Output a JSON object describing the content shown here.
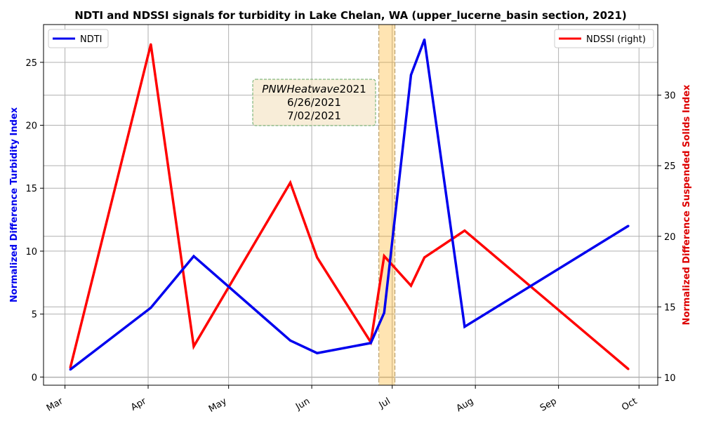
{
  "chart_data": {
    "type": "line",
    "title": "NDTI and NDSSI signals for turbidity in Lake Chelan, WA (upper_lucerne_basin section, 2021)",
    "ylabel_left": "Normalized Difference Turbidity Index",
    "ylabel_right": "Normalized Difference Suspended Solids Index",
    "x_ticks": [
      "Mar",
      "Apr",
      "May",
      "Jun",
      "Jul",
      "Aug",
      "Sep",
      "Oct"
    ],
    "x_tick_dates": [
      "2021-03-01",
      "2021-04-01",
      "2021-05-01",
      "2021-06-01",
      "2021-07-01",
      "2021-08-01",
      "2021-09-01",
      "2021-10-01"
    ],
    "y_left_ticks": [
      0,
      5,
      10,
      15,
      20,
      25
    ],
    "y_left_range": [
      -0.65,
      28
    ],
    "y_right_ticks": [
      10,
      15,
      20,
      25,
      30
    ],
    "y_right_range": [
      9.45,
      35
    ],
    "grid": true,
    "shaded_period": {
      "start": "2021-06-26",
      "end": "2021-07-02",
      "color": "#ffa500"
    },
    "annotation": {
      "lines": [
        "PNWHeatwave2021",
        "6/26/2021",
        "7/02/2021"
      ],
      "italic_part": "PNWHeatwave",
      "roman_part": "2021"
    },
    "series": [
      {
        "name": "NDTI",
        "axis": "left",
        "color": "#0000ee",
        "x": [
          "2021-03-03",
          "2021-04-02",
          "2021-04-18",
          "2021-05-24",
          "2021-06-03",
          "2021-06-23",
          "2021-06-28",
          "2021-07-08",
          "2021-07-13",
          "2021-07-28",
          "2021-09-27"
        ],
        "y": [
          0.6,
          5.5,
          9.6,
          2.9,
          1.9,
          2.7,
          5.1,
          24.0,
          26.8,
          4.0,
          12.0
        ]
      },
      {
        "name": "NDSSI (right)",
        "axis": "right",
        "color": "#ff0000",
        "x": [
          "2021-03-03",
          "2021-04-02",
          "2021-04-18",
          "2021-05-24",
          "2021-06-03",
          "2021-06-23",
          "2021-06-28",
          "2021-07-08",
          "2021-07-13",
          "2021-07-28",
          "2021-09-27"
        ],
        "y": [
          10.7,
          33.6,
          12.2,
          23.8,
          18.5,
          12.5,
          18.6,
          16.5,
          18.5,
          20.4,
          10.6
        ]
      }
    ],
    "legend": [
      {
        "label": "NDTI",
        "color": "#0000ee",
        "placement": "upper-left"
      },
      {
        "label": "NDSSI (right)",
        "color": "#ff0000",
        "placement": "upper-right"
      }
    ]
  }
}
